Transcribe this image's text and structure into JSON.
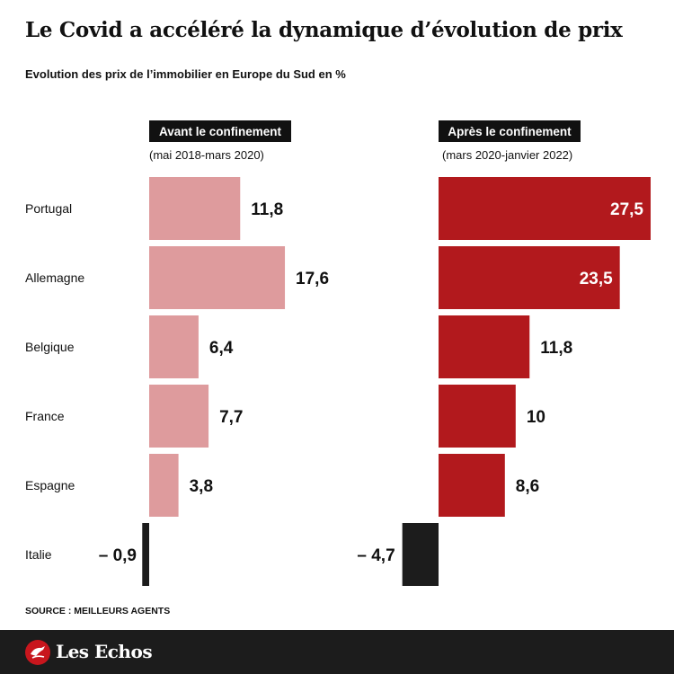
{
  "header": {
    "title": "Le Covid a accéléré la dynamique d’évolution de prix",
    "subtitle": "Evolution des prix de l’immobilier en Europe du Sud en %"
  },
  "footer": {
    "source": "SOURCE : MEILLEURS AGENTS",
    "brand": "Les Echos"
  },
  "colors": {
    "before_bar": "#de9b9d",
    "after_bar": "#b2191d",
    "negative_bar": "#1c1c1c",
    "label_box": "#111111"
  },
  "chart_data": [
    {
      "type": "bar",
      "orientation": "horizontal",
      "title": "Avant le confinement",
      "subtitle": "(mai 2018-mars 2020)",
      "categories": [
        "Portugal",
        "Allemagne",
        "Belgique",
        "France",
        "Espagne",
        "Italie"
      ],
      "values": [
        11.8,
        17.6,
        6.4,
        7.7,
        3.8,
        -0.9
      ],
      "value_labels": [
        "11,8",
        "17,6",
        "6,4",
        "7,7",
        "3,8",
        "– 0,9"
      ]
    },
    {
      "type": "bar",
      "orientation": "horizontal",
      "title": "Après le confinement",
      "subtitle": "(mars 2020-janvier 2022)",
      "categories": [
        "Portugal",
        "Allemagne",
        "Belgique",
        "France",
        "Espagne",
        "Italie"
      ],
      "values": [
        27.5,
        23.5,
        11.8,
        10,
        8.6,
        -4.7
      ],
      "value_labels": [
        "27,5",
        "23,5",
        "11,8",
        "10",
        "8,6",
        "– 4,7"
      ]
    }
  ]
}
